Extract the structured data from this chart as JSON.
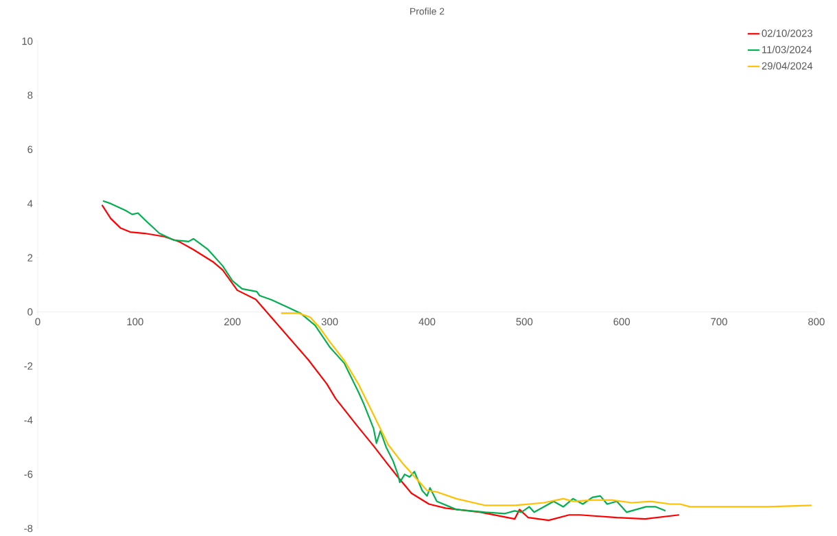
{
  "chart_data": {
    "type": "line",
    "title": "Profile 2",
    "xlim": [
      0,
      800
    ],
    "xticks": [
      0,
      100,
      200,
      300,
      400,
      500,
      600,
      700,
      800
    ],
    "ylim": [
      -8,
      10
    ],
    "yticks": [
      -8,
      -6,
      -4,
      -2,
      0,
      2,
      4,
      6,
      8,
      10
    ],
    "grid": false,
    "legend": "top right",
    "series": [
      {
        "name": "02/10/2023",
        "color": "#ff0000",
        "x": [
          66,
          75,
          85,
          95,
          110,
          130,
          145,
          160,
          180,
          190,
          205,
          224,
          278,
          297,
          306,
          328,
          345,
          359,
          370,
          384,
          402,
          419,
          455,
          490,
          495,
          504,
          525,
          546,
          557,
          595,
          624,
          659
        ],
        "values": [
          3.95,
          3.45,
          3.1,
          2.95,
          2.9,
          2.78,
          2.6,
          2.3,
          1.85,
          1.55,
          0.8,
          0.46,
          -1.77,
          -2.66,
          -3.2,
          -4.2,
          -4.95,
          -5.6,
          -6.1,
          -6.7,
          -7.1,
          -7.25,
          -7.4,
          -7.65,
          -7.3,
          -7.6,
          -7.7,
          -7.5,
          -7.5,
          -7.6,
          -7.65,
          -7.5
        ]
      },
      {
        "name": "11/03/2024",
        "color": "#00b050",
        "x": [
          67,
          75,
          90,
          97,
          103,
          110,
          125,
          140,
          155,
          160,
          175,
          190,
          200,
          210,
          225,
          228,
          240,
          255,
          270,
          285,
          300,
          315,
          330,
          335,
          345,
          348,
          352,
          358,
          365,
          370,
          372,
          377,
          382,
          387,
          395,
          400,
          403,
          410,
          430,
          460,
          480,
          490,
          497,
          505,
          510,
          520,
          530,
          540,
          550,
          560,
          570,
          578,
          585,
          595,
          605,
          615,
          625,
          635,
          645
        ],
        "values": [
          4.1,
          4.0,
          3.75,
          3.6,
          3.65,
          3.4,
          2.9,
          2.65,
          2.6,
          2.7,
          2.3,
          1.7,
          1.15,
          0.85,
          0.75,
          0.6,
          0.45,
          0.2,
          -0.05,
          -0.5,
          -1.3,
          -1.9,
          -3.0,
          -3.4,
          -4.3,
          -4.85,
          -4.4,
          -5.0,
          -5.5,
          -6.0,
          -6.3,
          -6.0,
          -6.1,
          -5.9,
          -6.6,
          -6.8,
          -6.5,
          -7.0,
          -7.3,
          -7.4,
          -7.45,
          -7.35,
          -7.4,
          -7.2,
          -7.4,
          -7.2,
          -7.0,
          -7.2,
          -6.9,
          -7.1,
          -6.85,
          -6.8,
          -7.1,
          -7.0,
          -7.4,
          -7.3,
          -7.2,
          -7.2,
          -7.35
        ]
      },
      {
        "name": "29/04/2024",
        "color": "#ffc000",
        "x": [
          250,
          268,
          280,
          290,
          300,
          315,
          330,
          345,
          360,
          375,
          390,
          400,
          410,
          430,
          460,
          490,
          520,
          540,
          550,
          570,
          590,
          610,
          630,
          650,
          660,
          670,
          700,
          750,
          795
        ],
        "values": [
          -0.05,
          -0.05,
          -0.2,
          -0.6,
          -1.1,
          -1.8,
          -2.7,
          -3.8,
          -4.9,
          -5.6,
          -6.2,
          -6.6,
          -6.65,
          -6.9,
          -7.15,
          -7.15,
          -7.05,
          -6.9,
          -7.0,
          -6.95,
          -6.95,
          -7.05,
          -7.0,
          -7.1,
          -7.1,
          -7.2,
          -7.2,
          -7.2,
          -7.15
        ]
      }
    ]
  }
}
